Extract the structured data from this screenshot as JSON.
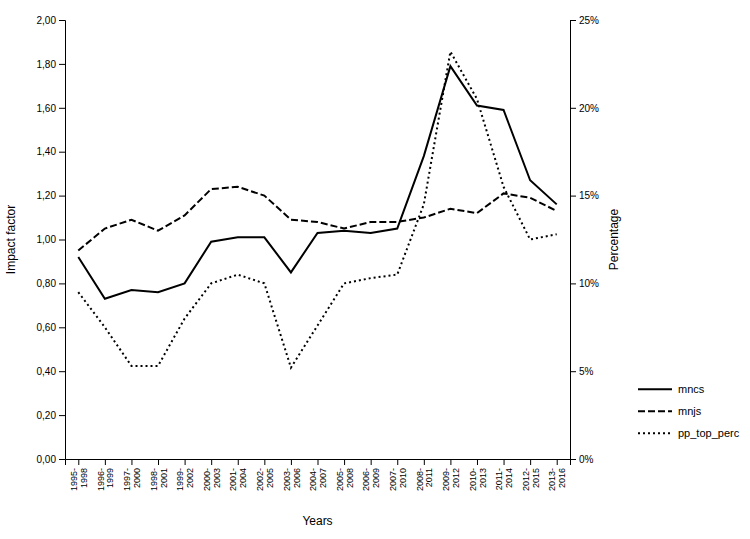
{
  "chart_data": {
    "type": "line",
    "xlabel": "Years",
    "ylabel": "Impact factor",
    "y2label": "Percentage",
    "categories": [
      "1995-\n1998",
      "1996-\n1999",
      "1997-\n2000",
      "1998-\n2001",
      "1999-\n2002",
      "2000-\n2003",
      "2001-\n2004",
      "2002-\n2005",
      "2003-\n2006",
      "2004-\n2007",
      "2005-\n2008",
      "2006-\n2009",
      "2007-\n2010",
      "2008-\n2011",
      "2009-\n2012",
      "2010-\n2013",
      "2011-\n2014",
      "2012-\n2015",
      "2013-\n2016"
    ],
    "series": [
      {
        "name": "mncs",
        "color": "#000000",
        "line_style": "solid",
        "values": [
          0.92,
          0.73,
          0.77,
          0.76,
          0.8,
          0.99,
          1.01,
          1.01,
          0.85,
          1.03,
          1.04,
          1.03,
          1.05,
          1.38,
          1.79,
          1.61,
          1.59,
          1.27,
          1.16
        ]
      },
      {
        "name": "mnjs",
        "color": "#000000",
        "line_style": "dashed",
        "values": [
          0.95,
          1.05,
          1.09,
          1.04,
          1.11,
          1.23,
          1.24,
          1.2,
          1.09,
          1.08,
          1.05,
          1.08,
          1.08,
          1.1,
          1.14,
          1.12,
          1.21,
          1.19,
          1.13
        ]
      },
      {
        "name": "pp_top_perc",
        "color": "#000000",
        "line_style": "dotted",
        "axis": "y2",
        "values": [
          0.095,
          0.075,
          0.053,
          0.053,
          0.08,
          0.1,
          0.105,
          0.1,
          0.052,
          0.076,
          0.1,
          0.103,
          0.105,
          0.145,
          0.232,
          0.205,
          0.155,
          0.125,
          0.128
        ]
      }
    ],
    "ylim": [
      0.0,
      2.0
    ],
    "yticks": [
      {
        "value": 0.0,
        "label": "0,00"
      },
      {
        "value": 0.2,
        "label": "0,20"
      },
      {
        "value": 0.4,
        "label": "0,40"
      },
      {
        "value": 0.6,
        "label": "0,60"
      },
      {
        "value": 0.8,
        "label": "0,80"
      },
      {
        "value": 1.0,
        "label": "1,00"
      },
      {
        "value": 1.2,
        "label": "1,20"
      },
      {
        "value": 1.4,
        "label": "1,40"
      },
      {
        "value": 1.6,
        "label": "1,60"
      },
      {
        "value": 1.8,
        "label": "1,80"
      },
      {
        "value": 2.0,
        "label": "2,00"
      }
    ],
    "y2lim": [
      0.0,
      0.25
    ],
    "y2ticks": [
      {
        "value": 0.0,
        "label": "0%"
      },
      {
        "value": 0.05,
        "label": "5%"
      },
      {
        "value": 0.1,
        "label": "10%"
      },
      {
        "value": 0.15,
        "label": "15%"
      },
      {
        "value": 0.2,
        "label": "20%"
      },
      {
        "value": 0.25,
        "label": "25%"
      }
    ],
    "grid": false,
    "legend": "right"
  }
}
